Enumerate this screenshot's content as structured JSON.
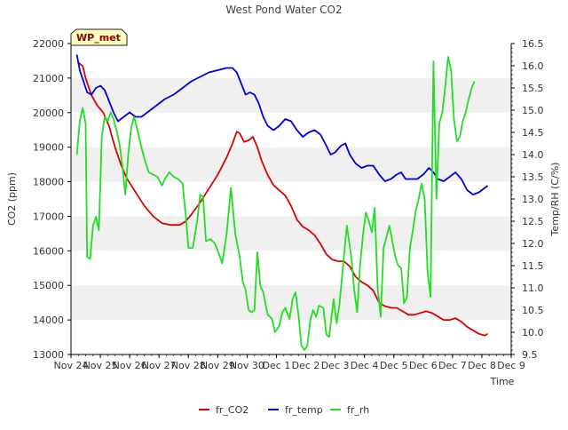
{
  "chart_data": {
    "type": "line",
    "title": "West Pond Water CO2",
    "xlabel": "Time",
    "ylabel_left": "CO2 (ppm)",
    "ylabel_right": "Temp/RH (C/%)",
    "badge": "WP_met",
    "x_ticks": [
      "Nov 24",
      "Nov 25",
      "Nov 26",
      "Nov 27",
      "Nov 28",
      "Nov 29",
      "Nov 30",
      "Dec 1",
      "Dec 2",
      "Dec 3",
      "Dec 4",
      "Dec 5",
      "Dec 6",
      "Dec 7",
      "Dec 8",
      "Dec 9"
    ],
    "x_range_days": [
      0,
      15
    ],
    "y_left": {
      "min": 13000,
      "max": 22000,
      "ticks": [
        13000,
        14000,
        15000,
        16000,
        17000,
        18000,
        19000,
        20000,
        21000,
        22000
      ]
    },
    "y_right": {
      "min": 9.5,
      "max": 16.5,
      "ticks": [
        9.5,
        10.0,
        10.5,
        11.0,
        11.5,
        12.0,
        12.5,
        13.0,
        13.5,
        14.0,
        14.5,
        15.0,
        15.5,
        16.0,
        16.5
      ]
    },
    "grid_bands": true,
    "legend_position": "bottom",
    "series": [
      {
        "name": "fr_CO2",
        "axis": "left",
        "color": "#dd0000",
        "points": [
          [
            0.25,
            21450
          ],
          [
            0.4,
            21350
          ],
          [
            0.5,
            21000
          ],
          [
            0.7,
            20500
          ],
          [
            0.9,
            20200
          ],
          [
            1.1,
            20000
          ],
          [
            1.3,
            19600
          ],
          [
            1.5,
            19000
          ],
          [
            1.7,
            18500
          ],
          [
            1.9,
            18100
          ],
          [
            2.2,
            17700
          ],
          [
            2.5,
            17300
          ],
          [
            2.8,
            17000
          ],
          [
            3.1,
            16800
          ],
          [
            3.4,
            16750
          ],
          [
            3.7,
            16750
          ],
          [
            3.9,
            16850
          ],
          [
            4.1,
            17050
          ],
          [
            4.4,
            17400
          ],
          [
            4.7,
            17800
          ],
          [
            5.0,
            18200
          ],
          [
            5.3,
            18700
          ],
          [
            5.5,
            19100
          ],
          [
            5.65,
            19450
          ],
          [
            5.75,
            19400
          ],
          [
            5.9,
            19150
          ],
          [
            6.05,
            19200
          ],
          [
            6.2,
            19300
          ],
          [
            6.35,
            19000
          ],
          [
            6.5,
            18600
          ],
          [
            6.7,
            18200
          ],
          [
            6.9,
            17900
          ],
          [
            7.1,
            17750
          ],
          [
            7.3,
            17600
          ],
          [
            7.5,
            17300
          ],
          [
            7.7,
            16900
          ],
          [
            7.9,
            16700
          ],
          [
            8.1,
            16600
          ],
          [
            8.3,
            16450
          ],
          [
            8.5,
            16200
          ],
          [
            8.7,
            15900
          ],
          [
            8.9,
            15750
          ],
          [
            9.1,
            15700
          ],
          [
            9.3,
            15700
          ],
          [
            9.5,
            15550
          ],
          [
            9.7,
            15250
          ],
          [
            9.9,
            15100
          ],
          [
            10.1,
            15000
          ],
          [
            10.3,
            14850
          ],
          [
            10.5,
            14500
          ],
          [
            10.7,
            14400
          ],
          [
            10.9,
            14350
          ],
          [
            11.1,
            14350
          ],
          [
            11.3,
            14250
          ],
          [
            11.5,
            14150
          ],
          [
            11.7,
            14150
          ],
          [
            11.9,
            14200
          ],
          [
            12.1,
            14250
          ],
          [
            12.3,
            14200
          ],
          [
            12.5,
            14100
          ],
          [
            12.7,
            14000
          ],
          [
            12.9,
            14000
          ],
          [
            13.1,
            14050
          ],
          [
            13.3,
            13950
          ],
          [
            13.5,
            13800
          ],
          [
            13.7,
            13700
          ],
          [
            13.9,
            13600
          ],
          [
            14.1,
            13550
          ],
          [
            14.2,
            13600
          ]
        ]
      },
      {
        "name": "fr_temp",
        "axis": "right",
        "color": "#0000dd",
        "points": [
          [
            0.2,
            16.25
          ],
          [
            0.3,
            15.9
          ],
          [
            0.4,
            15.7
          ],
          [
            0.55,
            15.4
          ],
          [
            0.7,
            15.35
          ],
          [
            0.85,
            15.5
          ],
          [
            1.0,
            15.55
          ],
          [
            1.15,
            15.45
          ],
          [
            1.3,
            15.2
          ],
          [
            1.45,
            14.95
          ],
          [
            1.6,
            14.75
          ],
          [
            1.8,
            14.85
          ],
          [
            2.0,
            14.95
          ],
          [
            2.2,
            14.85
          ],
          [
            2.4,
            14.85
          ],
          [
            2.6,
            14.95
          ],
          [
            2.8,
            15.05
          ],
          [
            3.0,
            15.15
          ],
          [
            3.2,
            15.25
          ],
          [
            3.5,
            15.35
          ],
          [
            3.8,
            15.5
          ],
          [
            4.1,
            15.65
          ],
          [
            4.4,
            15.75
          ],
          [
            4.7,
            15.85
          ],
          [
            5.0,
            15.9
          ],
          [
            5.3,
            15.95
          ],
          [
            5.5,
            15.95
          ],
          [
            5.65,
            15.85
          ],
          [
            5.8,
            15.6
          ],
          [
            5.95,
            15.35
          ],
          [
            6.1,
            15.4
          ],
          [
            6.25,
            15.35
          ],
          [
            6.4,
            15.15
          ],
          [
            6.55,
            14.85
          ],
          [
            6.7,
            14.65
          ],
          [
            6.9,
            14.55
          ],
          [
            7.1,
            14.65
          ],
          [
            7.3,
            14.8
          ],
          [
            7.5,
            14.75
          ],
          [
            7.7,
            14.55
          ],
          [
            7.9,
            14.4
          ],
          [
            8.1,
            14.5
          ],
          [
            8.3,
            14.55
          ],
          [
            8.5,
            14.45
          ],
          [
            8.7,
            14.2
          ],
          [
            8.85,
            14.0
          ],
          [
            9.0,
            14.05
          ],
          [
            9.2,
            14.2
          ],
          [
            9.35,
            14.25
          ],
          [
            9.5,
            14.0
          ],
          [
            9.7,
            13.8
          ],
          [
            9.9,
            13.7
          ],
          [
            10.1,
            13.75
          ],
          [
            10.3,
            13.75
          ],
          [
            10.5,
            13.55
          ],
          [
            10.7,
            13.4
          ],
          [
            10.9,
            13.45
          ],
          [
            11.1,
            13.55
          ],
          [
            11.25,
            13.6
          ],
          [
            11.4,
            13.45
          ],
          [
            11.6,
            13.45
          ],
          [
            11.8,
            13.45
          ],
          [
            12.0,
            13.55
          ],
          [
            12.2,
            13.7
          ],
          [
            12.35,
            13.6
          ],
          [
            12.5,
            13.45
          ],
          [
            12.7,
            13.4
          ],
          [
            12.9,
            13.5
          ],
          [
            13.1,
            13.6
          ],
          [
            13.3,
            13.45
          ],
          [
            13.5,
            13.2
          ],
          [
            13.7,
            13.1
          ],
          [
            13.9,
            13.15
          ],
          [
            14.1,
            13.25
          ],
          [
            14.2,
            13.3
          ]
        ]
      },
      {
        "name": "fr_rh",
        "axis": "right",
        "color": "#22dd22",
        "points": [
          [
            0.2,
            14.0
          ],
          [
            0.3,
            14.75
          ],
          [
            0.4,
            15.05
          ],
          [
            0.5,
            14.7
          ],
          [
            0.55,
            11.7
          ],
          [
            0.65,
            11.65
          ],
          [
            0.75,
            12.4
          ],
          [
            0.85,
            12.6
          ],
          [
            0.95,
            12.3
          ],
          [
            1.05,
            14.4
          ],
          [
            1.15,
            14.85
          ],
          [
            1.25,
            14.75
          ],
          [
            1.35,
            14.95
          ],
          [
            1.45,
            14.8
          ],
          [
            1.55,
            14.55
          ],
          [
            1.65,
            14.25
          ],
          [
            1.75,
            13.75
          ],
          [
            1.85,
            13.1
          ],
          [
            1.95,
            14.0
          ],
          [
            2.05,
            14.6
          ],
          [
            2.15,
            14.85
          ],
          [
            2.25,
            14.6
          ],
          [
            2.35,
            14.3
          ],
          [
            2.5,
            13.9
          ],
          [
            2.65,
            13.6
          ],
          [
            2.8,
            13.55
          ],
          [
            2.95,
            13.5
          ],
          [
            3.1,
            13.3
          ],
          [
            3.2,
            13.45
          ],
          [
            3.35,
            13.6
          ],
          [
            3.5,
            13.5
          ],
          [
            3.65,
            13.45
          ],
          [
            3.8,
            13.35
          ],
          [
            3.9,
            12.7
          ],
          [
            4.0,
            11.9
          ],
          [
            4.15,
            11.9
          ],
          [
            4.3,
            12.5
          ],
          [
            4.4,
            13.1
          ],
          [
            4.5,
            13.05
          ],
          [
            4.6,
            12.05
          ],
          [
            4.75,
            12.1
          ],
          [
            4.9,
            12.0
          ],
          [
            5.05,
            11.75
          ],
          [
            5.15,
            11.55
          ],
          [
            5.3,
            12.2
          ],
          [
            5.45,
            13.25
          ],
          [
            5.6,
            12.2
          ],
          [
            5.75,
            11.7
          ],
          [
            5.85,
            11.15
          ],
          [
            5.95,
            10.95
          ],
          [
            6.05,
            10.5
          ],
          [
            6.15,
            10.45
          ],
          [
            6.25,
            10.5
          ],
          [
            6.35,
            11.8
          ],
          [
            6.45,
            11.05
          ],
          [
            6.55,
            10.9
          ],
          [
            6.7,
            10.4
          ],
          [
            6.85,
            10.3
          ],
          [
            6.95,
            10.0
          ],
          [
            7.1,
            10.15
          ],
          [
            7.2,
            10.45
          ],
          [
            7.3,
            10.55
          ],
          [
            7.45,
            10.3
          ],
          [
            7.55,
            10.75
          ],
          [
            7.65,
            10.9
          ],
          [
            7.75,
            10.4
          ],
          [
            7.85,
            9.7
          ],
          [
            7.95,
            9.6
          ],
          [
            8.05,
            9.7
          ],
          [
            8.15,
            10.25
          ],
          [
            8.25,
            10.5
          ],
          [
            8.35,
            10.35
          ],
          [
            8.45,
            10.6
          ],
          [
            8.6,
            10.55
          ],
          [
            8.7,
            9.95
          ],
          [
            8.8,
            9.9
          ],
          [
            8.95,
            10.75
          ],
          [
            9.05,
            10.2
          ],
          [
            9.15,
            10.65
          ],
          [
            9.3,
            11.7
          ],
          [
            9.4,
            12.4
          ],
          [
            9.55,
            11.7
          ],
          [
            9.65,
            10.95
          ],
          [
            9.75,
            10.45
          ],
          [
            9.85,
            11.5
          ],
          [
            9.95,
            12.2
          ],
          [
            10.05,
            12.7
          ],
          [
            10.15,
            12.5
          ],
          [
            10.25,
            12.25
          ],
          [
            10.35,
            12.8
          ],
          [
            10.45,
            11.0
          ],
          [
            10.55,
            10.35
          ],
          [
            10.65,
            11.9
          ],
          [
            10.75,
            12.15
          ],
          [
            10.85,
            12.4
          ],
          [
            10.95,
            12.05
          ],
          [
            11.05,
            11.7
          ],
          [
            11.15,
            11.5
          ],
          [
            11.25,
            11.45
          ],
          [
            11.35,
            10.65
          ],
          [
            11.45,
            10.8
          ],
          [
            11.55,
            11.9
          ],
          [
            11.65,
            12.3
          ],
          [
            11.75,
            12.75
          ],
          [
            11.85,
            13.0
          ],
          [
            11.95,
            13.35
          ],
          [
            12.05,
            13.0
          ],
          [
            12.15,
            11.35
          ],
          [
            12.25,
            10.8
          ],
          [
            12.35,
            16.1
          ],
          [
            12.45,
            13.0
          ],
          [
            12.55,
            14.7
          ],
          [
            12.65,
            14.95
          ],
          [
            12.75,
            15.5
          ],
          [
            12.85,
            16.2
          ],
          [
            12.95,
            15.9
          ],
          [
            13.05,
            14.8
          ],
          [
            13.15,
            14.3
          ],
          [
            13.25,
            14.4
          ],
          [
            13.35,
            14.75
          ],
          [
            13.45,
            14.95
          ],
          [
            13.55,
            15.25
          ],
          [
            13.65,
            15.5
          ],
          [
            13.75,
            15.65
          ]
        ]
      }
    ]
  }
}
